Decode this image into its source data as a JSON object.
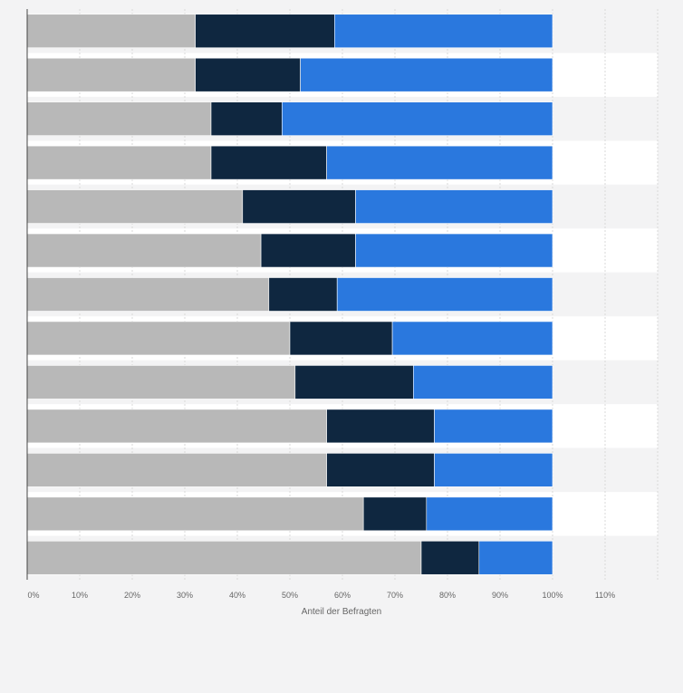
{
  "chart_data": {
    "type": "bar",
    "orientation": "horizontal",
    "stacked": true,
    "title": "",
    "xlabel": "Anteil der Befragten",
    "ylabel": "",
    "xlim": [
      0,
      120
    ],
    "x_ticks": [
      "0%",
      "10%",
      "20%",
      "30%",
      "40%",
      "50%",
      "60%",
      "70%",
      "80%",
      "90%",
      "100%",
      "110%"
    ],
    "grid": true,
    "legend": "none",
    "categories": [
      "",
      "",
      "",
      "",
      "",
      "",
      "",
      "",
      "",
      "",
      "",
      "",
      ""
    ],
    "series": [
      {
        "color": "#b8b8b8",
        "values": [
          32,
          32,
          35,
          35,
          41,
          44.5,
          46,
          50,
          51,
          57,
          57,
          64,
          75
        ]
      },
      {
        "color": "#0f2740",
        "values": [
          26.5,
          20,
          13.5,
          22,
          21.5,
          18,
          13,
          19.5,
          22.5,
          20.5,
          20.5,
          12,
          11
        ]
      },
      {
        "color": "#2a78de",
        "values": [
          41.5,
          48,
          51.5,
          43,
          37.5,
          37.5,
          41,
          30.5,
          26.5,
          22.5,
          22.5,
          24,
          14
        ]
      }
    ]
  }
}
